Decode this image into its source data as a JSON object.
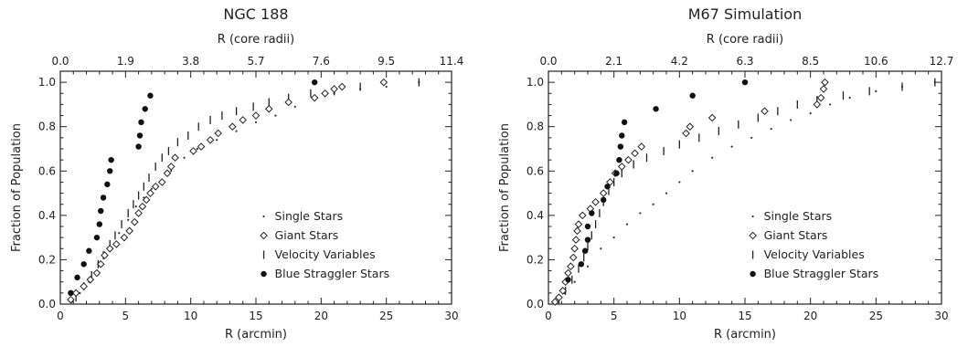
{
  "chart_data": [
    {
      "type": "scatter",
      "title": "NGC 188",
      "xlabel": "R (arcmin)",
      "ylabel": "Fraction of Population",
      "x2label": "R (core radii)",
      "xlim": [
        0,
        30
      ],
      "ylim": [
        0,
        1.05
      ],
      "x_ticks": [
        "0",
        "5",
        "10",
        "15",
        "20",
        "25",
        "30"
      ],
      "y_ticks": [
        "0.0",
        "0.2",
        "0.4",
        "0.6",
        "0.8",
        "1.0"
      ],
      "x2_ticks": [
        "0.0",
        "1.9",
        "3.8",
        "5.7",
        "7.6",
        "9.5",
        "11.4"
      ],
      "legend_position": "lower-right",
      "series": [
        {
          "name": "Single Stars",
          "marker": "dot",
          "points": [
            [
              0.9,
              0.01
            ],
            [
              1.5,
              0.05
            ],
            [
              2.2,
              0.1
            ],
            [
              3.0,
              0.18
            ],
            [
              3.8,
              0.26
            ],
            [
              4.5,
              0.32
            ],
            [
              5.2,
              0.38
            ],
            [
              5.8,
              0.44
            ],
            [
              6.4,
              0.48
            ],
            [
              7.0,
              0.52
            ],
            [
              7.8,
              0.56
            ],
            [
              8.5,
              0.6
            ],
            [
              9.5,
              0.66
            ],
            [
              10.5,
              0.7
            ],
            [
              12,
              0.74
            ],
            [
              13.5,
              0.78
            ],
            [
              15,
              0.82
            ],
            [
              16.5,
              0.85
            ],
            [
              18,
              0.89
            ],
            [
              19.5,
              0.93
            ],
            [
              21,
              0.95
            ],
            [
              23,
              0.97
            ],
            [
              25,
              0.98
            ],
            [
              27.5,
              1.0
            ]
          ]
        },
        {
          "name": "Giant Stars",
          "marker": "diamond",
          "points": [
            [
              0.8,
              0.02
            ],
            [
              1.2,
              0.05
            ],
            [
              1.8,
              0.08
            ],
            [
              2.3,
              0.11
            ],
            [
              2.8,
              0.14
            ],
            [
              3.1,
              0.18
            ],
            [
              3.4,
              0.22
            ],
            [
              3.8,
              0.25
            ],
            [
              4.3,
              0.27
            ],
            [
              4.9,
              0.3
            ],
            [
              5.3,
              0.33
            ],
            [
              5.7,
              0.37
            ],
            [
              6.0,
              0.41
            ],
            [
              6.3,
              0.44
            ],
            [
              6.6,
              0.47
            ],
            [
              6.9,
              0.5
            ],
            [
              7.3,
              0.53
            ],
            [
              7.8,
              0.55
            ],
            [
              8.2,
              0.59
            ],
            [
              8.5,
              0.62
            ],
            [
              8.8,
              0.66
            ],
            [
              10.2,
              0.69
            ],
            [
              10.8,
              0.71
            ],
            [
              11.5,
              0.74
            ],
            [
              12.1,
              0.77
            ],
            [
              13.2,
              0.8
            ],
            [
              14.0,
              0.83
            ],
            [
              15.0,
              0.85
            ],
            [
              16.0,
              0.88
            ],
            [
              17.5,
              0.91
            ],
            [
              19.5,
              0.93
            ],
            [
              20.3,
              0.95
            ],
            [
              21.0,
              0.97
            ],
            [
              21.6,
              0.98
            ],
            [
              24.8,
              1.0
            ]
          ]
        },
        {
          "name": "Velocity Variables",
          "marker": "bar",
          "points": [
            [
              1.2,
              0.03
            ],
            [
              1.8,
              0.08
            ],
            [
              2.4,
              0.13
            ],
            [
              2.9,
              0.18
            ],
            [
              3.3,
              0.22
            ],
            [
              3.8,
              0.27
            ],
            [
              4.2,
              0.31
            ],
            [
              4.7,
              0.36
            ],
            [
              5.2,
              0.41
            ],
            [
              5.6,
              0.45
            ],
            [
              6.0,
              0.49
            ],
            [
              6.4,
              0.53
            ],
            [
              6.8,
              0.57
            ],
            [
              7.3,
              0.62
            ],
            [
              7.8,
              0.66
            ],
            [
              8.3,
              0.69
            ],
            [
              9.0,
              0.73
            ],
            [
              9.8,
              0.76
            ],
            [
              10.6,
              0.8
            ],
            [
              11.5,
              0.83
            ],
            [
              12.4,
              0.85
            ],
            [
              13.5,
              0.87
            ],
            [
              14.8,
              0.89
            ],
            [
              16.0,
              0.91
            ],
            [
              17.5,
              0.93
            ],
            [
              19.2,
              0.95
            ],
            [
              21.0,
              0.96
            ],
            [
              23.0,
              0.98
            ],
            [
              27.5,
              1.0
            ]
          ]
        },
        {
          "name": "Blue Straggler Stars",
          "marker": "filled-circle",
          "points": [
            [
              0.8,
              0.05
            ],
            [
              1.3,
              0.12
            ],
            [
              1.8,
              0.18
            ],
            [
              2.2,
              0.24
            ],
            [
              2.8,
              0.3
            ],
            [
              3.0,
              0.36
            ],
            [
              3.1,
              0.42
            ],
            [
              3.3,
              0.48
            ],
            [
              3.6,
              0.54
            ],
            [
              3.8,
              0.6
            ],
            [
              3.9,
              0.65
            ],
            [
              6.0,
              0.71
            ],
            [
              6.1,
              0.76
            ],
            [
              6.2,
              0.82
            ],
            [
              6.5,
              0.88
            ],
            [
              6.9,
              0.94
            ],
            [
              19.5,
              1.0
            ]
          ]
        }
      ]
    },
    {
      "type": "scatter",
      "title": "M67 Simulation",
      "xlabel": "R (arcmin)",
      "ylabel": "Fraction of Population",
      "x2label": "R (core radii)",
      "xlim": [
        0,
        30
      ],
      "ylim": [
        0,
        1.05
      ],
      "x_ticks": [
        "0",
        "5",
        "10",
        "15",
        "20",
        "25",
        "30"
      ],
      "y_ticks": [
        "0.0",
        "0.2",
        "0.4",
        "0.6",
        "0.8",
        "1.0"
      ],
      "x2_ticks": [
        "0.0",
        "2.1",
        "4.2",
        "6.3",
        "8.5",
        "10.6",
        "12.7"
      ],
      "legend_position": "lower-right",
      "series": [
        {
          "name": "Single Stars",
          "marker": "dot",
          "points": [
            [
              0.5,
              0.01
            ],
            [
              1.2,
              0.05
            ],
            [
              2.0,
              0.1
            ],
            [
              3.0,
              0.17
            ],
            [
              4.0,
              0.25
            ],
            [
              5.0,
              0.3
            ],
            [
              6.0,
              0.36
            ],
            [
              7.0,
              0.41
            ],
            [
              8.0,
              0.45
            ],
            [
              9.0,
              0.5
            ],
            [
              10.0,
              0.55
            ],
            [
              11.0,
              0.6
            ],
            [
              12.5,
              0.66
            ],
            [
              14.0,
              0.71
            ],
            [
              15.5,
              0.75
            ],
            [
              17.0,
              0.79
            ],
            [
              18.5,
              0.83
            ],
            [
              20.0,
              0.86
            ],
            [
              21.5,
              0.9
            ],
            [
              23.0,
              0.93
            ],
            [
              25.0,
              0.96
            ],
            [
              27.0,
              0.98
            ],
            [
              29.5,
              1.0
            ]
          ]
        },
        {
          "name": "Giant Stars",
          "marker": "diamond",
          "points": [
            [
              0.5,
              0.01
            ],
            [
              0.8,
              0.03
            ],
            [
              1.1,
              0.06
            ],
            [
              1.3,
              0.1
            ],
            [
              1.5,
              0.14
            ],
            [
              1.7,
              0.17
            ],
            [
              1.9,
              0.21
            ],
            [
              2.0,
              0.25
            ],
            [
              2.1,
              0.29
            ],
            [
              2.2,
              0.33
            ],
            [
              2.3,
              0.36
            ],
            [
              2.6,
              0.4
            ],
            [
              3.2,
              0.43
            ],
            [
              3.6,
              0.46
            ],
            [
              4.2,
              0.5
            ],
            [
              4.7,
              0.55
            ],
            [
              5.1,
              0.59
            ],
            [
              5.6,
              0.62
            ],
            [
              6.1,
              0.65
            ],
            [
              6.6,
              0.68
            ],
            [
              7.1,
              0.71
            ],
            [
              10.5,
              0.77
            ],
            [
              10.8,
              0.8
            ],
            [
              12.5,
              0.84
            ],
            [
              16.5,
              0.87
            ],
            [
              20.5,
              0.9
            ],
            [
              20.8,
              0.93
            ],
            [
              21.0,
              0.97
            ],
            [
              21.1,
              1.0
            ]
          ]
        },
        {
          "name": "Velocity Variables",
          "marker": "bar",
          "points": [
            [
              0.8,
              0.02
            ],
            [
              1.3,
              0.06
            ],
            [
              1.8,
              0.11
            ],
            [
              2.3,
              0.16
            ],
            [
              2.7,
              0.21
            ],
            [
              3.0,
              0.26
            ],
            [
              3.3,
              0.31
            ],
            [
              3.6,
              0.36
            ],
            [
              3.9,
              0.41
            ],
            [
              4.2,
              0.46
            ],
            [
              4.6,
              0.51
            ],
            [
              5.0,
              0.55
            ],
            [
              5.6,
              0.59
            ],
            [
              6.5,
              0.63
            ],
            [
              7.5,
              0.66
            ],
            [
              8.8,
              0.69
            ],
            [
              10.0,
              0.72
            ],
            [
              11.5,
              0.75
            ],
            [
              13.0,
              0.78
            ],
            [
              14.5,
              0.81
            ],
            [
              16.0,
              0.84
            ],
            [
              17.5,
              0.87
            ],
            [
              19.0,
              0.9
            ],
            [
              20.5,
              0.92
            ],
            [
              22.5,
              0.94
            ],
            [
              24.5,
              0.96
            ],
            [
              27.0,
              0.98
            ],
            [
              29.5,
              1.0
            ]
          ]
        },
        {
          "name": "Blue Straggler Stars",
          "marker": "filled-circle",
          "points": [
            [
              1.5,
              0.11
            ],
            [
              2.5,
              0.18
            ],
            [
              2.8,
              0.24
            ],
            [
              3.0,
              0.29
            ],
            [
              3.0,
              0.35
            ],
            [
              3.3,
              0.41
            ],
            [
              4.2,
              0.47
            ],
            [
              4.5,
              0.53
            ],
            [
              5.2,
              0.59
            ],
            [
              5.4,
              0.65
            ],
            [
              5.5,
              0.71
            ],
            [
              5.6,
              0.76
            ],
            [
              5.8,
              0.82
            ],
            [
              8.2,
              0.88
            ],
            [
              11.0,
              0.94
            ],
            [
              15.0,
              1.0
            ]
          ]
        }
      ]
    }
  ]
}
